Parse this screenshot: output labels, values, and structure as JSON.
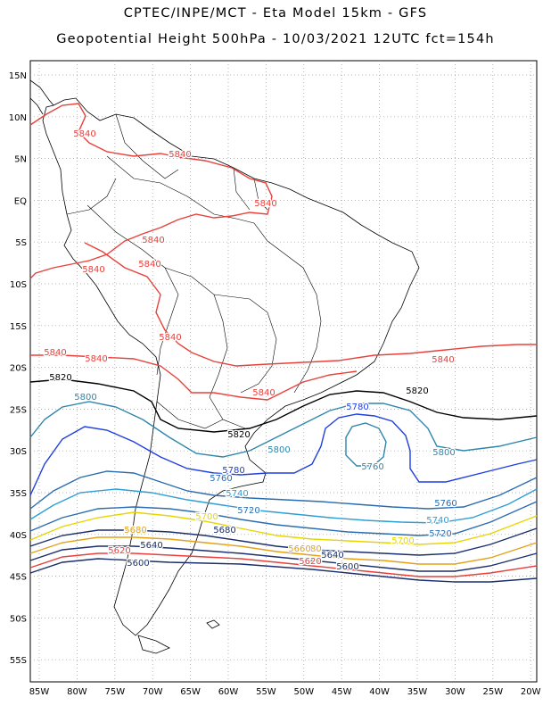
{
  "header": {
    "line1": "CPTEC/INPE/MCT -  Eta Model 15km - GFS",
    "line2": "Geopotential Height 500hPa - 10/03/2021 12UTC fct=154h"
  },
  "map": {
    "lon_labels": [
      "85W",
      "80W",
      "75W",
      "70W",
      "65W",
      "60W",
      "55W",
      "50W",
      "45W",
      "40W",
      "35W",
      "30W",
      "25W",
      "20W"
    ],
    "lat_labels": [
      "15N",
      "10N",
      "5N",
      "EQ",
      "5S",
      "10S",
      "15S",
      "20S",
      "25S",
      "30S",
      "35S",
      "40S",
      "45S",
      "50S",
      "55S"
    ],
    "contour_labels": [
      {
        "text": "5840",
        "color": "#e8413c"
      },
      {
        "text": "5840",
        "color": "#e8413c"
      },
      {
        "text": "5840",
        "color": "#e8413c"
      },
      {
        "text": "5840",
        "color": "#e8413c"
      },
      {
        "text": "5840",
        "color": "#e8413c"
      },
      {
        "text": "5840",
        "color": "#e8413c"
      },
      {
        "text": "5840",
        "color": "#e8413c"
      },
      {
        "text": "5840",
        "color": "#e8413c"
      },
      {
        "text": "5840",
        "color": "#e8413c"
      },
      {
        "text": "5840",
        "color": "#e8413c"
      },
      {
        "text": "5840",
        "color": "#e8413c"
      },
      {
        "text": "5820",
        "color": "#000000"
      },
      {
        "text": "5820",
        "color": "#000000"
      },
      {
        "text": "5820",
        "color": "#000000"
      },
      {
        "text": "5800",
        "color": "#2e86ab"
      },
      {
        "text": "5800",
        "color": "#2e86ab"
      },
      {
        "text": "5800",
        "color": "#2e86ab"
      },
      {
        "text": "5780",
        "color": "#1f3fe0"
      },
      {
        "text": "5780",
        "color": "#1f3fe0"
      },
      {
        "text": "5760",
        "color": "#2e86ab"
      },
      {
        "text": "5760",
        "color": "#2b6cb0"
      },
      {
        "text": "5760",
        "color": "#2b6cb0"
      },
      {
        "text": "5740",
        "color": "#2e9ed6"
      },
      {
        "text": "5740",
        "color": "#2e9ed6"
      },
      {
        "text": "5720",
        "color": "#2b6cb0"
      },
      {
        "text": "5720",
        "color": "#2b6cb0"
      },
      {
        "text": "5700",
        "color": "#e6d600"
      },
      {
        "text": "5700",
        "color": "#e6d600"
      },
      {
        "text": "5680",
        "color": "#1a2f6e"
      },
      {
        "text": "5680",
        "color": "#e3a21a"
      },
      {
        "text": "5680",
        "color": "#e3a21a"
      },
      {
        "text": "5660",
        "color": "#e3a21a"
      },
      {
        "text": "5640",
        "color": "#1a2f6e"
      },
      {
        "text": "5640",
        "color": "#1a2f6e"
      },
      {
        "text": "5620",
        "color": "#e8413c"
      },
      {
        "text": "5620",
        "color": "#e8413c"
      },
      {
        "text": "5600",
        "color": "#1a2f6e"
      },
      {
        "text": "5600",
        "color": "#1a2f6e"
      }
    ]
  }
}
